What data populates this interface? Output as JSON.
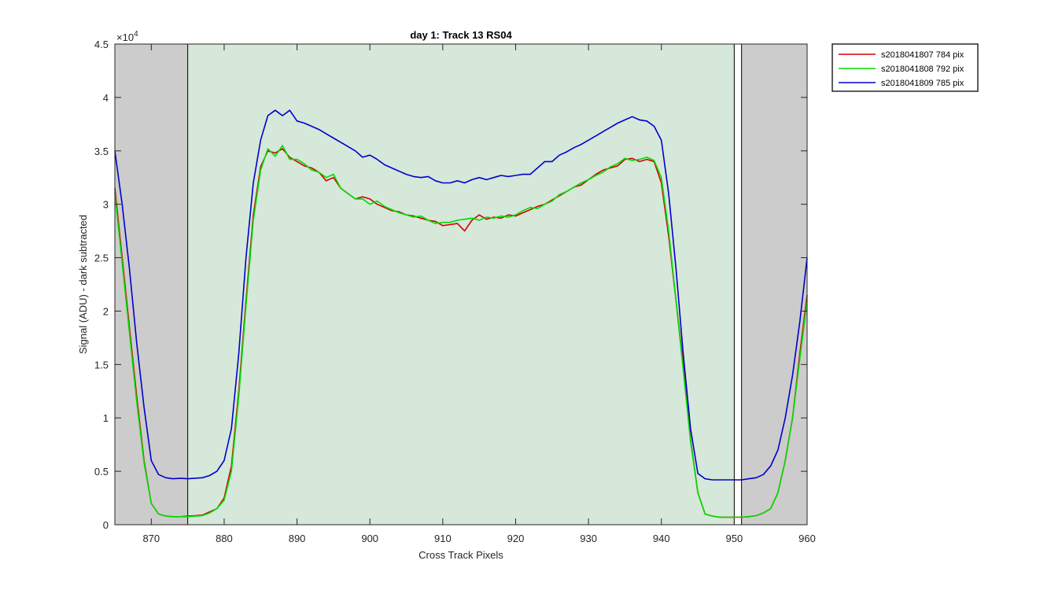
{
  "chart_data": {
    "type": "line",
    "title": "day 1: Track 13  RS04",
    "xlabel": "Cross Track Pixels",
    "ylabel": "Signal (ADU) - dark subtracted",
    "y_exponent_label": "×10",
    "y_exponent_power": "4",
    "xlim": [
      865,
      960
    ],
    "ylim": [
      0,
      45000
    ],
    "x_ticks": [
      870,
      880,
      890,
      900,
      910,
      920,
      930,
      940,
      950,
      960
    ],
    "y_ticks": [
      0,
      5000,
      10000,
      15000,
      20000,
      25000,
      30000,
      35000,
      40000,
      45000
    ],
    "y_tick_labels": [
      "0",
      "0.5",
      "1",
      "1.5",
      "2",
      "2.5",
      "3",
      "3.5",
      "4",
      "4.5"
    ],
    "grid": false,
    "legend_position": "outside-top-right",
    "regions": [
      {
        "kind": "excluded",
        "x0": 865,
        "x1": 875,
        "color": "#cccccc"
      },
      {
        "kind": "included",
        "x0": 875,
        "x1": 950,
        "color": "#d5e8da"
      },
      {
        "kind": "gap",
        "x0": 950,
        "x1": 951,
        "color": "#ffffff"
      },
      {
        "kind": "excluded",
        "x0": 951,
        "x1": 960,
        "color": "#cccccc"
      }
    ],
    "vlines": [
      875,
      950,
      951
    ],
    "series": [
      {
        "name": "s2018041807 784 pix",
        "color": "#d40000",
        "x": [
          865,
          866,
          867,
          868,
          869,
          870,
          871,
          872,
          873,
          874,
          875,
          876,
          877,
          878,
          879,
          880,
          881,
          882,
          883,
          884,
          885,
          886,
          887,
          888,
          889,
          890,
          891,
          892,
          893,
          894,
          895,
          896,
          897,
          898,
          899,
          900,
          901,
          902,
          903,
          904,
          905,
          906,
          907,
          908,
          909,
          910,
          911,
          912,
          913,
          914,
          915,
          916,
          917,
          918,
          919,
          920,
          921,
          922,
          923,
          924,
          925,
          926,
          927,
          928,
          929,
          930,
          931,
          932,
          933,
          934,
          935,
          936,
          937,
          938,
          939,
          940,
          941,
          942,
          943,
          944,
          945,
          946,
          947,
          948,
          949,
          950,
          951,
          952,
          953,
          954,
          955,
          956,
          957,
          958,
          959,
          960
        ],
        "y": [
          31500,
          25000,
          18500,
          12000,
          6000,
          2000,
          1000,
          800,
          750,
          750,
          800,
          850,
          900,
          1200,
          1500,
          2500,
          5500,
          12500,
          21000,
          29000,
          33500,
          35000,
          34800,
          35200,
          34400,
          34000,
          33600,
          33400,
          33000,
          32200,
          32500,
          31500,
          31000,
          30500,
          30700,
          30500,
          30000,
          29700,
          29400,
          29300,
          29000,
          28900,
          28700,
          28500,
          28400,
          28000,
          28100,
          28200,
          27500,
          28500,
          29000,
          28600,
          28800,
          28700,
          29000,
          28900,
          29200,
          29500,
          29800,
          30000,
          30400,
          30800,
          31200,
          31600,
          31800,
          32300,
          32800,
          33200,
          33400,
          33600,
          34200,
          34300,
          34000,
          34200,
          34000,
          32000,
          27000,
          21000,
          15000,
          8000,
          3000,
          1000,
          800,
          700,
          700,
          700,
          700,
          750,
          850,
          1100,
          1500,
          3000,
          6000,
          10000,
          16000,
          21500
        ]
      },
      {
        "name": "s2018041808 792 pix",
        "color": "#00dd00",
        "x": [
          865,
          866,
          867,
          868,
          869,
          870,
          871,
          872,
          873,
          874,
          875,
          876,
          877,
          878,
          879,
          880,
          881,
          882,
          883,
          884,
          885,
          886,
          887,
          888,
          889,
          890,
          891,
          892,
          893,
          894,
          895,
          896,
          897,
          898,
          899,
          900,
          901,
          902,
          903,
          904,
          905,
          906,
          907,
          908,
          909,
          910,
          911,
          912,
          913,
          914,
          915,
          916,
          917,
          918,
          919,
          920,
          921,
          922,
          923,
          924,
          925,
          926,
          927,
          928,
          929,
          930,
          931,
          932,
          933,
          934,
          935,
          936,
          937,
          938,
          939,
          940,
          941,
          942,
          943,
          944,
          945,
          946,
          947,
          948,
          949,
          950,
          951,
          952,
          953,
          954,
          955,
          956,
          957,
          958,
          959,
          960
        ],
        "y": [
          31000,
          24500,
          18000,
          11500,
          5800,
          2000,
          1000,
          800,
          750,
          750,
          750,
          800,
          850,
          1100,
          1500,
          2300,
          5000,
          12000,
          20500,
          28500,
          33200,
          35200,
          34500,
          35500,
          34200,
          34200,
          33800,
          33200,
          33000,
          32500,
          32800,
          31500,
          31000,
          30500,
          30500,
          30000,
          30300,
          29800,
          29500,
          29200,
          29000,
          28800,
          28900,
          28500,
          28200,
          28300,
          28300,
          28500,
          28600,
          28700,
          28500,
          28800,
          28700,
          28900,
          28800,
          29000,
          29400,
          29700,
          29600,
          30000,
          30300,
          30900,
          31200,
          31600,
          32000,
          32300,
          32700,
          33000,
          33500,
          33800,
          34300,
          34100,
          34200,
          34400,
          34100,
          32500,
          27500,
          21000,
          14500,
          7800,
          3000,
          1000,
          800,
          700,
          700,
          700,
          700,
          750,
          850,
          1100,
          1500,
          3000,
          6000,
          10000,
          15500,
          21000
        ]
      },
      {
        "name": "s2018041809 785 pix",
        "color": "#0000cc",
        "x": [
          865,
          866,
          867,
          868,
          869,
          870,
          871,
          872,
          873,
          874,
          875,
          876,
          877,
          878,
          879,
          880,
          881,
          882,
          883,
          884,
          885,
          886,
          887,
          888,
          889,
          890,
          891,
          892,
          893,
          894,
          895,
          896,
          897,
          898,
          899,
          900,
          901,
          902,
          903,
          904,
          905,
          906,
          907,
          908,
          909,
          910,
          911,
          912,
          913,
          914,
          915,
          916,
          917,
          918,
          919,
          920,
          921,
          922,
          923,
          924,
          925,
          926,
          927,
          928,
          929,
          930,
          931,
          932,
          933,
          934,
          935,
          936,
          937,
          938,
          939,
          940,
          941,
          942,
          943,
          944,
          945,
          946,
          947,
          948,
          949,
          950,
          951,
          952,
          953,
          954,
          955,
          956,
          957,
          958,
          959,
          960
        ],
        "y": [
          35000,
          30000,
          24000,
          17000,
          11000,
          6000,
          4700,
          4400,
          4300,
          4350,
          4300,
          4350,
          4400,
          4600,
          5000,
          6000,
          9000,
          16000,
          25000,
          32000,
          36000,
          38300,
          38800,
          38300,
          38800,
          37800,
          37600,
          37300,
          37000,
          36600,
          36200,
          35800,
          35400,
          35000,
          34400,
          34600,
          34200,
          33700,
          33400,
          33100,
          32800,
          32600,
          32500,
          32600,
          32200,
          32000,
          32000,
          32200,
          32000,
          32300,
          32500,
          32300,
          32500,
          32700,
          32600,
          32700,
          32800,
          32800,
          33400,
          34000,
          34000,
          34600,
          34900,
          35300,
          35600,
          36000,
          36400,
          36800,
          37200,
          37600,
          37900,
          38200,
          37900,
          37800,
          37300,
          36000,
          31000,
          24000,
          16000,
          9000,
          4800,
          4300,
          4200,
          4200,
          4200,
          4200,
          4200,
          4300,
          4400,
          4700,
          5500,
          7000,
          10000,
          14000,
          19000,
          25000
        ]
      }
    ]
  }
}
